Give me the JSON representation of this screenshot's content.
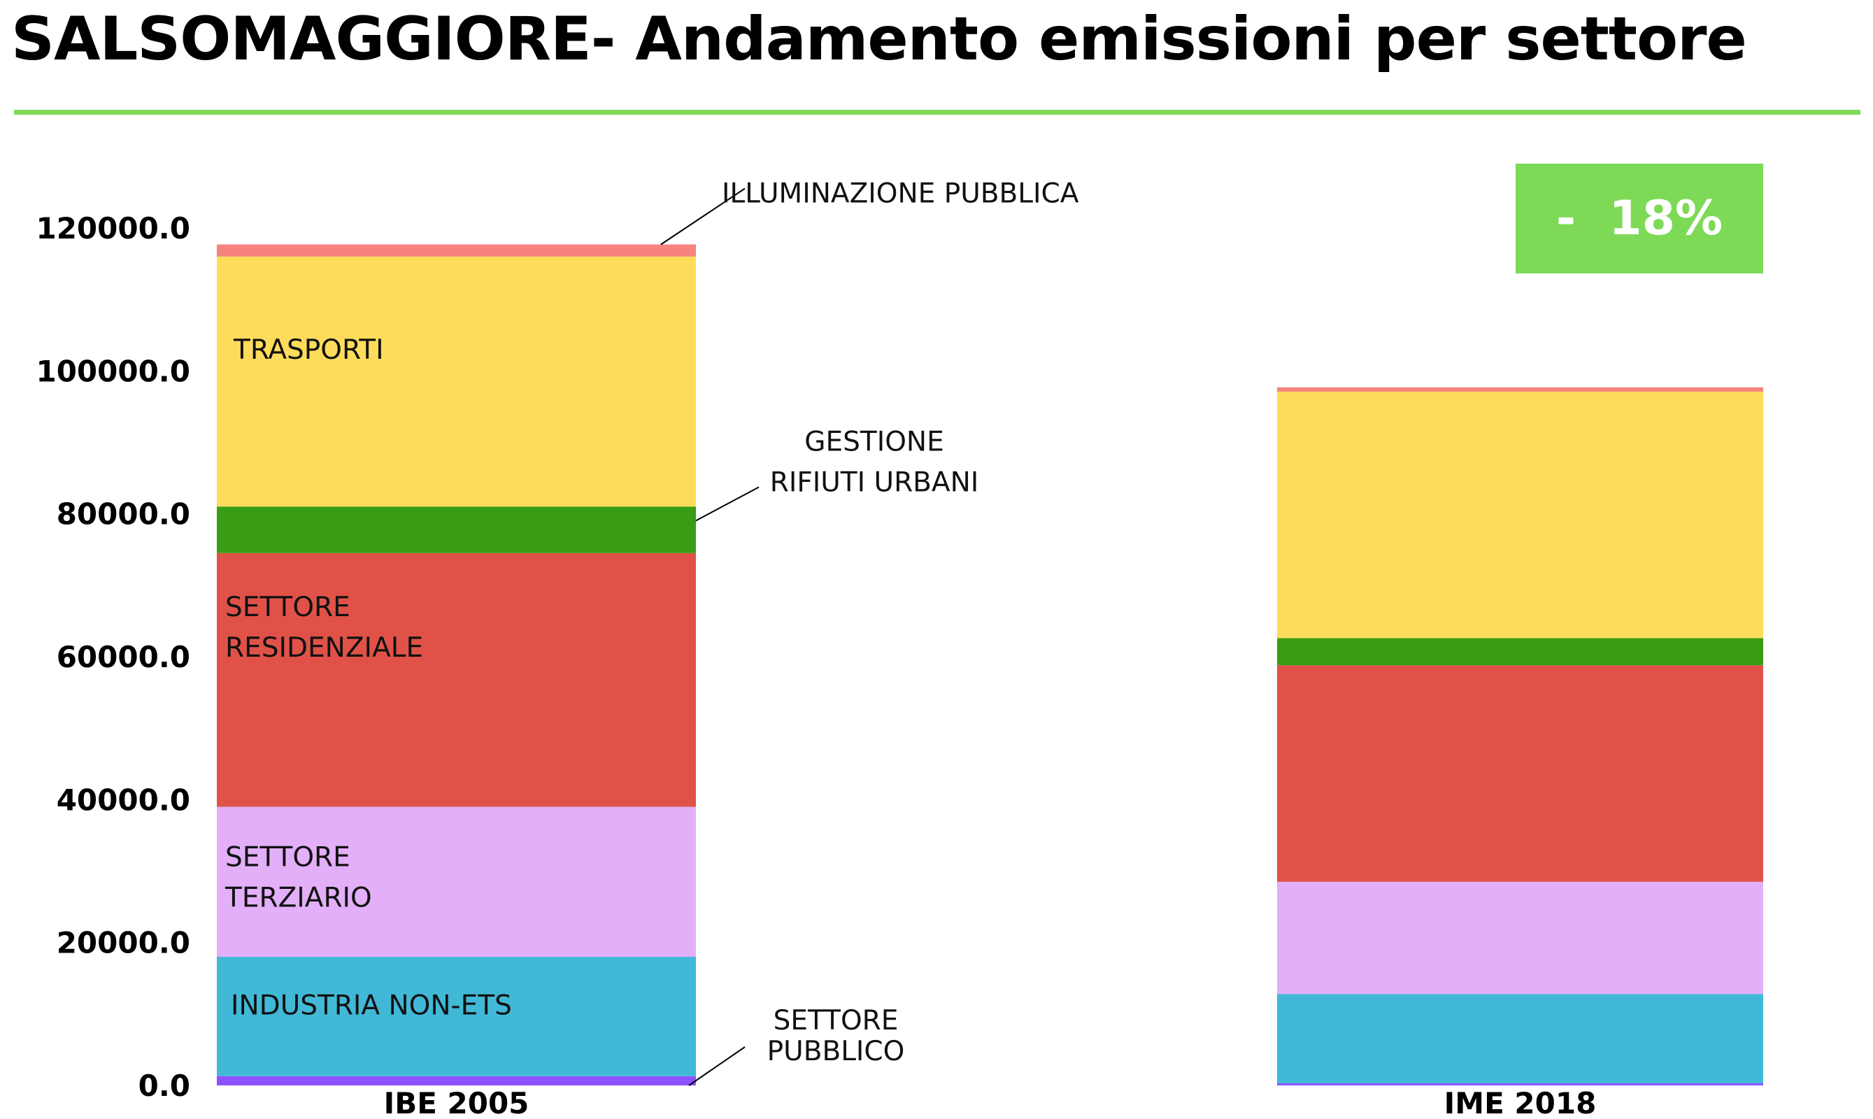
{
  "title": "SALSOMAGGIORE- Andamento emissioni per settore",
  "badge": "-  18%",
  "colors": {
    "accent_green": "#7ed957",
    "settore_pubblico": "#8c52ff",
    "industria_non_ets": "#42b8d7",
    "settore_terziario": "#e2aff8",
    "settore_residenziale": "#e05248",
    "gestione_rifiuti_urbani": "#389c14",
    "trasporti": "#fedc5b",
    "illuminazione_pubblica": "#f6837e"
  },
  "chart_data": {
    "type": "bar",
    "stacked": true,
    "categories": [
      "IBE 2005",
      "IME 2018"
    ],
    "ylim": [
      0,
      120000
    ],
    "yticks": [
      "0.0",
      "20000.0",
      "40000.0",
      "60000.0",
      "80000.0",
      "100000.0",
      "120000.0"
    ],
    "series": [
      {
        "key": "settore_pubblico",
        "values": [
          1300,
          300
        ]
      },
      {
        "key": "industria_non_ets",
        "values": [
          16700,
          12500
        ]
      },
      {
        "key": "settore_terziario",
        "values": [
          21000,
          15700
        ]
      },
      {
        "key": "settore_residenziale",
        "values": [
          35500,
          30300
        ]
      },
      {
        "key": "gestione_rifiuti_urbani",
        "values": [
          6500,
          3800
        ]
      },
      {
        "key": "trasporti",
        "values": [
          35000,
          34500
        ]
      },
      {
        "key": "illuminazione_pubblica",
        "values": [
          1700,
          600
        ]
      }
    ],
    "labels": {
      "trasporti": "TRASPORTI",
      "settore_residenziale": [
        "SETTORE",
        "RESIDENZIALE"
      ],
      "settore_terziario": [
        "SETTORE",
        "TERZIARIO"
      ],
      "industria_non_ets": "INDUSTRIA NON-ETS",
      "illuminazione_pubblica": "ILLUMINAZIONE PUBBLICA",
      "gestione_rifiuti_urbani": [
        "GESTIONE",
        "RIFIUTI URBANI"
      ],
      "settore_pubblico": [
        "SETTORE",
        "PUBBLICO"
      ]
    }
  }
}
